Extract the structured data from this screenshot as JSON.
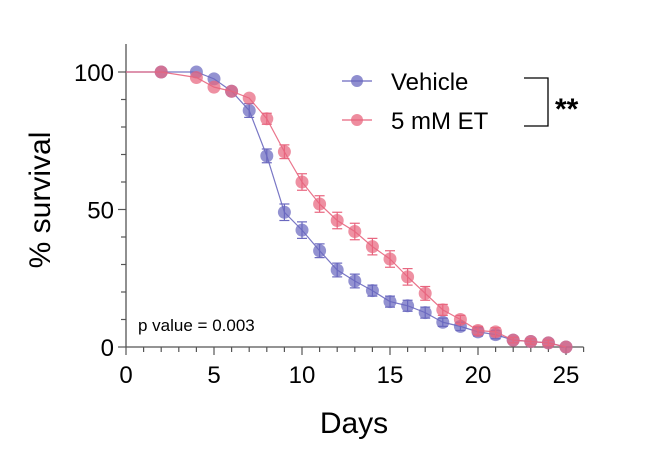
{
  "chart_data": {
    "type": "line",
    "title": "",
    "xlabel": "Days",
    "ylabel": "% survival",
    "xlim": [
      0,
      26
    ],
    "ylim": [
      0,
      100
    ],
    "x_ticks": [
      0,
      5,
      10,
      15,
      20,
      25
    ],
    "y_ticks": [
      0,
      50,
      100
    ],
    "grid": false,
    "legend_position": "top-right",
    "annotation": "p value = 0.003",
    "significance": "**",
    "series": [
      {
        "name": "Vehicle",
        "color": "#6A68BF",
        "x": [
          2,
          4,
          5,
          6,
          7,
          8,
          9,
          10,
          11,
          12,
          13,
          14,
          15,
          16,
          17,
          18,
          19,
          20,
          21,
          22,
          23,
          24,
          25
        ],
        "y": [
          100,
          100,
          97.5,
          93,
          86,
          69.5,
          49,
          42.5,
          35,
          28,
          24,
          20.5,
          16.5,
          15,
          12.5,
          9,
          7.5,
          5.5,
          4.5,
          2.5,
          2,
          1.5,
          0
        ],
        "err": [
          0,
          0,
          0,
          0,
          2.5,
          2.5,
          3,
          3,
          2.5,
          2.5,
          2.5,
          2,
          2,
          2,
          2,
          1.5,
          1.5,
          1.5,
          1.5,
          1,
          1,
          1,
          0
        ]
      },
      {
        "name": "5 mM ET",
        "color": "#E8657E",
        "x": [
          2,
          4,
          5,
          6,
          7,
          8,
          9,
          10,
          11,
          12,
          13,
          14,
          15,
          16,
          17,
          18,
          19,
          20,
          21,
          22,
          23,
          24,
          25
        ],
        "y": [
          100,
          98,
          94.5,
          93,
          90.5,
          83,
          71,
          60,
          52,
          46,
          42,
          36.5,
          32,
          25.5,
          19.5,
          13.5,
          10,
          6,
          5.5,
          2.5,
          2,
          1.5,
          0
        ],
        "err": [
          0,
          0,
          0,
          0,
          0,
          2,
          2.5,
          3,
          3,
          3,
          3,
          3,
          3,
          3,
          2.5,
          2,
          1.5,
          1.5,
          1.5,
          1,
          1,
          1,
          0
        ]
      }
    ]
  }
}
